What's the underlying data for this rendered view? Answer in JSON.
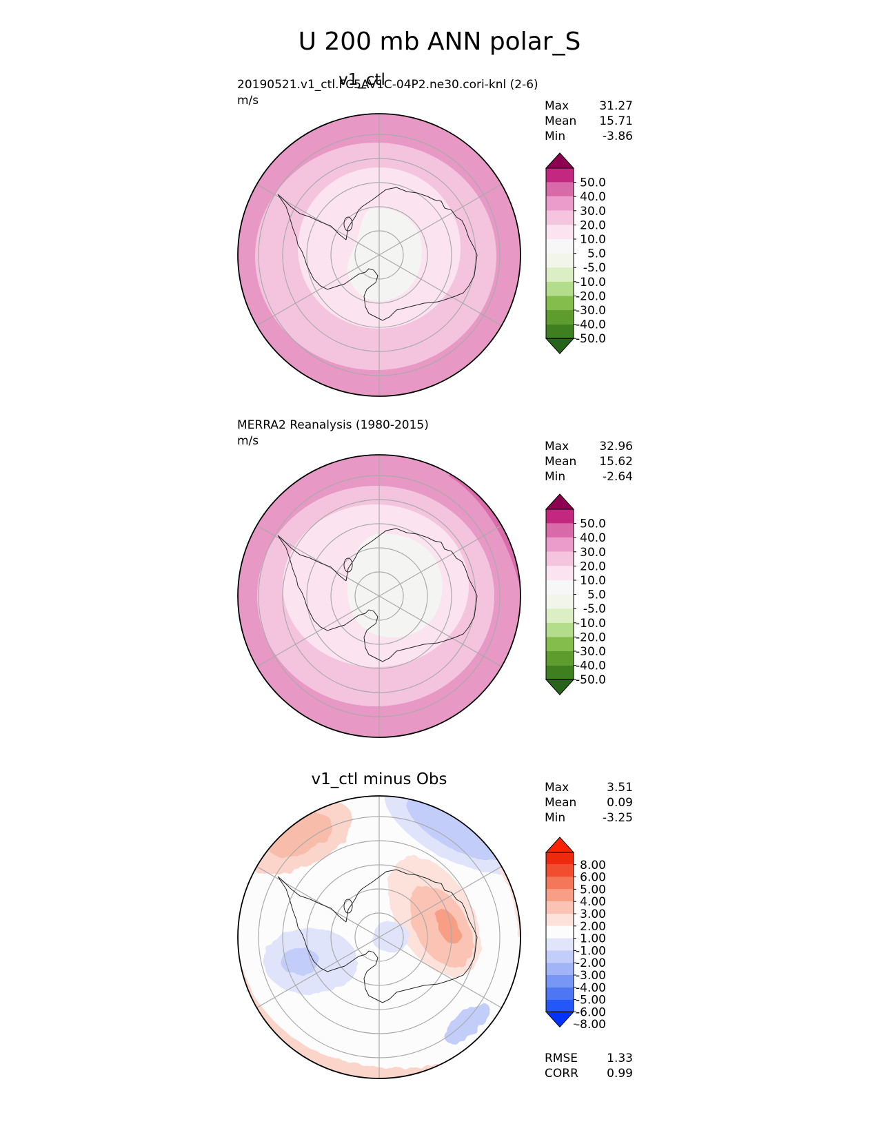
{
  "title": "U 200 mb ANN polar_S",
  "colors": {
    "div_pink_green": [
      "#276419",
      "#4d9221",
      "#7fbc41",
      "#b8e186",
      "#e6f5d0",
      "#f7f7f7",
      "#fde0ef",
      "#f1b6da",
      "#de77ae",
      "#c51b7d",
      "#8e0152"
    ],
    "div_pink_green_full": [
      "#276419",
      "#3e7f1f",
      "#5e9c2e",
      "#84bd4b",
      "#b3dc8b",
      "#dceec4",
      "#f1f5ea",
      "#f7f7f7",
      "#fbe4f0",
      "#f5c5e0",
      "#ec9ccb",
      "#d96aaa",
      "#c4277f",
      "#8e0152"
    ],
    "div_red_blue": [
      "#0033ff",
      "#2457f7",
      "#4d77f2",
      "#7896f5",
      "#a0b4f7",
      "#c3cdf9",
      "#e1e5fb",
      "#fcfcfc",
      "#fde2db",
      "#fbc3b3",
      "#f89e84",
      "#f5775a",
      "#f14d2e",
      "#ee2a0e",
      "#ff2200"
    ],
    "map_line": "#222222",
    "grid_line": "#aaaaaa"
  },
  "panels": [
    {
      "id": "test",
      "title": "v1_ctl",
      "left_label": "20190521.v1_ctl.FC5AV1C-04P2.ne30.cori-knl (2-6)",
      "units": "m/s",
      "stats": [
        {
          "k": "Max",
          "v": "31.27"
        },
        {
          "k": "Mean",
          "v": "15.71"
        },
        {
          "k": "Min",
          "v": "-3.86"
        }
      ],
      "colorbar": {
        "labels": [
          "50.0",
          "40.0",
          "30.0",
          "20.0",
          "10.0",
          "5.0",
          "-5.0",
          "-10.0",
          "-20.0",
          "-30.0",
          "-40.0",
          "-50.0"
        ]
      }
    },
    {
      "id": "ref",
      "title": "",
      "left_label": "MERRA2 Reanalysis (1980-2015)",
      "units": "m/s",
      "stats": [
        {
          "k": "Max",
          "v": "32.96"
        },
        {
          "k": "Mean",
          "v": "15.62"
        },
        {
          "k": "Min",
          "v": "-2.64"
        }
      ],
      "colorbar": {
        "labels": [
          "50.0",
          "40.0",
          "30.0",
          "20.0",
          "10.0",
          "5.0",
          "-5.0",
          "-10.0",
          "-20.0",
          "-30.0",
          "-40.0",
          "-50.0"
        ]
      }
    },
    {
      "id": "diff",
      "title": "v1_ctl minus Obs",
      "left_label": "",
      "units": "",
      "stats": [
        {
          "k": "Max",
          "v": "3.51"
        },
        {
          "k": "Mean",
          "v": "0.09"
        },
        {
          "k": "Min",
          "v": "-3.25"
        }
      ],
      "colorbar": {
        "labels": [
          "8.00",
          "6.00",
          "5.00",
          "4.00",
          "3.00",
          "2.00",
          "1.00",
          "-1.00",
          "-2.00",
          "-3.00",
          "-4.00",
          "-5.00",
          "-6.00",
          "-8.00"
        ]
      },
      "metrics": [
        {
          "k": "RMSE",
          "v": "1.33"
        },
        {
          "k": "CORR",
          "v": "0.99"
        }
      ]
    }
  ],
  "chart_data": [
    {
      "type": "heatmap",
      "title": "v1_ctl",
      "projection": "south polar stereographic",
      "units": "m/s",
      "stats": {
        "max": 31.27,
        "mean": 15.71,
        "min": -3.86
      },
      "levels": [
        -50,
        -40,
        -30,
        -20,
        -10,
        -5,
        5,
        10,
        20,
        30,
        40,
        50
      ],
      "field": [
        {
          "region": "outer ring (~40S-50S)",
          "value": 25
        },
        {
          "region": "middle ring",
          "value": 15
        },
        {
          "region": "inner ring",
          "value": 7
        },
        {
          "region": "pole",
          "value": 0
        }
      ]
    },
    {
      "type": "heatmap",
      "title": "MERRA2 Reanalysis (1980-2015)",
      "projection": "south polar stereographic",
      "units": "m/s",
      "stats": {
        "max": 32.96,
        "mean": 15.62,
        "min": -2.64
      },
      "levels": [
        -50,
        -40,
        -30,
        -20,
        -10,
        -5,
        5,
        10,
        20,
        30,
        40,
        50
      ],
      "field": [
        {
          "region": "outer ring",
          "value": 25
        },
        {
          "region": "middle ring",
          "value": 15
        },
        {
          "region": "inner ring",
          "value": 7
        },
        {
          "region": "pole",
          "value": 0
        }
      ]
    },
    {
      "type": "heatmap",
      "title": "v1_ctl minus Obs",
      "projection": "south polar stereographic",
      "stats": {
        "max": 3.51,
        "mean": 0.09,
        "min": -3.25,
        "rmse": 1.33,
        "corr": 0.99
      },
      "levels": [
        -8,
        -6,
        -5,
        -4,
        -3,
        -2,
        -1,
        1,
        2,
        3,
        4,
        5,
        6,
        8
      ],
      "field": [
        {
          "region": "northwest outer",
          "value": 1.5
        },
        {
          "region": "northeast outer",
          "value": -2
        },
        {
          "region": "east Antarctica",
          "value": 2.5
        },
        {
          "region": "west ring",
          "value": -1.5
        },
        {
          "region": "south outer",
          "value": 1.2
        },
        {
          "region": "southeast small",
          "value": -2
        }
      ]
    }
  ]
}
